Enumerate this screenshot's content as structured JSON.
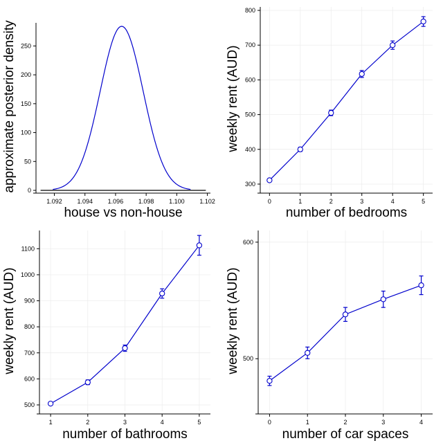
{
  "chart_data": [
    {
      "type": "line",
      "panel": "top-left",
      "xlabel": "house vs non-house",
      "ylabel": "approximate posterior density",
      "xlim": [
        1.0908,
        1.1022
      ],
      "ylim": [
        0,
        290
      ],
      "xticks": [
        1.092,
        1.094,
        1.096,
        1.098,
        1.1,
        1.102
      ],
      "xtick_labels": [
        "1.092",
        "1.094",
        "1.096",
        "1.098",
        "1.100",
        "1.102"
      ],
      "yticks": [
        0,
        50,
        100,
        150,
        200,
        250
      ],
      "ytick_labels": [
        "0",
        "50",
        "100",
        "150",
        "200",
        "250"
      ],
      "density": {
        "mean": 1.0964,
        "peak": 284,
        "sd": 0.0014,
        "x_range": [
          1.0919,
          1.1009
        ]
      },
      "baseline": {
        "y": 0,
        "x_range": [
          1.0911,
          1.1019
        ]
      },
      "grid": false
    },
    {
      "type": "line",
      "panel": "top-right",
      "xlabel": "number of bedrooms",
      "ylabel": "weekly rent (AUD)",
      "xlim": [
        -0.3,
        5.3
      ],
      "ylim": [
        282,
        810
      ],
      "xticks": [
        0,
        1,
        2,
        3,
        4,
        5
      ],
      "xtick_labels": [
        "0",
        "1",
        "2",
        "3",
        "4",
        "5"
      ],
      "yticks": [
        300,
        400,
        500,
        600,
        700,
        800
      ],
      "ytick_labels": [
        "300",
        "400",
        "500",
        "600",
        "700",
        "800"
      ],
      "x": [
        0,
        1,
        2,
        3,
        4,
        5
      ],
      "y": [
        311,
        400,
        505,
        617,
        700,
        768
      ],
      "err": [
        4,
        6,
        8,
        10,
        12,
        14
      ],
      "grid": true
    },
    {
      "type": "line",
      "panel": "bottom-left",
      "xlabel": "number of bathrooms",
      "ylabel": "weekly rent (AUD)",
      "xlim": [
        0.7,
        5.3
      ],
      "ylim": [
        476,
        1170
      ],
      "xticks": [
        1,
        2,
        3,
        4,
        5
      ],
      "xtick_labels": [
        "1",
        "2",
        "3",
        "4",
        "5"
      ],
      "yticks": [
        500,
        600,
        700,
        800,
        900,
        1000,
        1100
      ],
      "ytick_labels": [
        "500",
        "600",
        "700",
        "800",
        "900",
        "1000",
        "1100"
      ],
      "x": [
        1,
        2,
        3,
        4,
        5
      ],
      "y": [
        505,
        587,
        718,
        928,
        1113
      ],
      "err": [
        6,
        9,
        12,
        18,
        38
      ],
      "grid": true
    },
    {
      "type": "line",
      "panel": "bottom-right",
      "xlabel": "number of car spaces",
      "ylabel": "weekly rent (AUD)",
      "xlim": [
        -0.3,
        4.3
      ],
      "ylim": [
        455,
        610
      ],
      "xticks": [
        0,
        1,
        2,
        3,
        4
      ],
      "xtick_labels": [
        "0",
        "1",
        "2",
        "3",
        "4"
      ],
      "yticks": [
        500,
        600
      ],
      "ytick_labels": [
        "500",
        "600"
      ],
      "x": [
        0,
        1,
        2,
        3,
        4
      ],
      "y": [
        481,
        505,
        538,
        551,
        563
      ],
      "err": [
        4,
        5,
        6,
        7,
        8
      ],
      "grid": true
    }
  ]
}
